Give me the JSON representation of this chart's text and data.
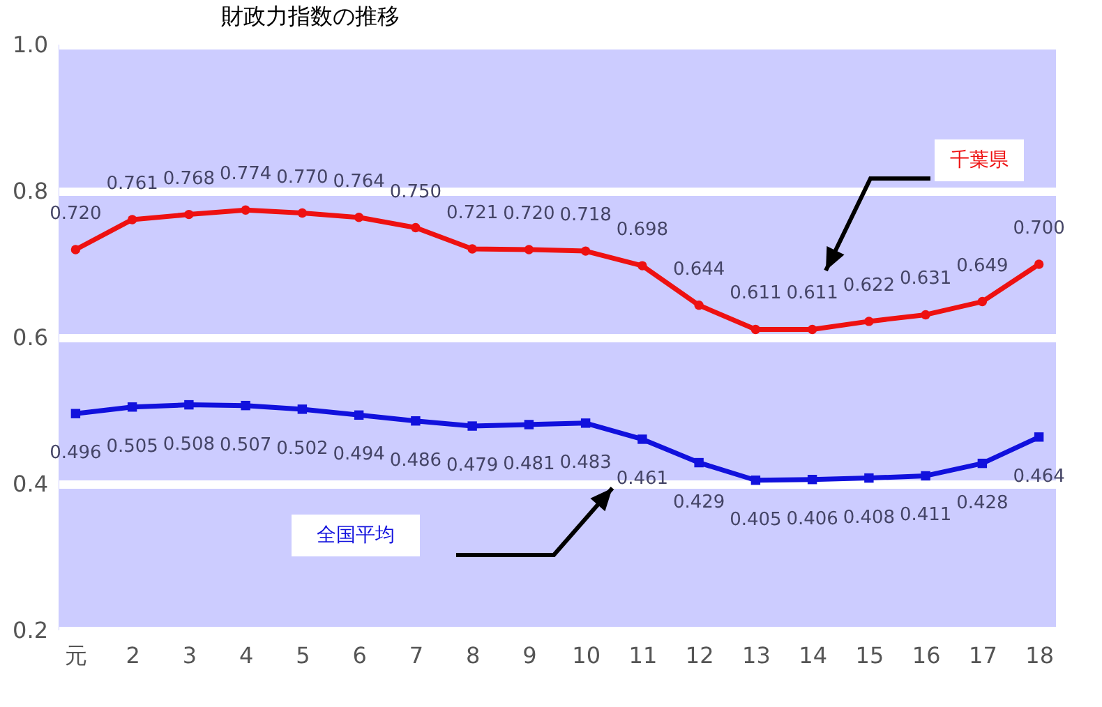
{
  "chart_data": {
    "type": "line",
    "title": "財政力指数の推移",
    "categories": [
      "元",
      "2",
      "3",
      "4",
      "5",
      "6",
      "7",
      "8",
      "9",
      "10",
      "11",
      "12",
      "13",
      "14",
      "15",
      "16",
      "17",
      "18"
    ],
    "series": [
      {
        "name": "千葉県",
        "color": "#ee1111",
        "marker": "circle",
        "values": [
          0.72,
          0.761,
          0.768,
          0.774,
          0.77,
          0.764,
          0.75,
          0.721,
          0.72,
          0.718,
          0.698,
          0.644,
          0.611,
          0.611,
          0.622,
          0.631,
          0.649,
          0.7
        ],
        "value_labels": [
          "0.720",
          "0.761",
          "0.768",
          "0.774",
          "0.770",
          "0.764",
          "0.750",
          "0.721",
          "0.720",
          "0.718",
          "0.698",
          "0.644",
          "0.611",
          "0.611",
          "0.622",
          "0.631",
          "0.649",
          "0.700"
        ]
      },
      {
        "name": "全国平均",
        "color": "#1111dd",
        "marker": "square",
        "values": [
          0.496,
          0.505,
          0.508,
          0.507,
          0.502,
          0.494,
          0.486,
          0.479,
          0.481,
          0.483,
          0.461,
          0.429,
          0.405,
          0.406,
          0.408,
          0.411,
          0.428,
          0.464
        ],
        "value_labels": [
          "0.496",
          "0.505",
          "0.508",
          "0.507",
          "0.502",
          "0.494",
          "0.486",
          "0.479",
          "0.481",
          "0.483",
          "0.461",
          "0.429",
          "0.405",
          "0.406",
          "0.408",
          "0.411",
          "0.428",
          "0.464"
        ]
      }
    ],
    "ylim": [
      0.2,
      1.0
    ],
    "yticks": [
      0.2,
      0.4,
      0.6,
      0.8,
      {
        "value": 1.0,
        "label": "1.0"
      }
    ],
    "grid": "y"
  }
}
